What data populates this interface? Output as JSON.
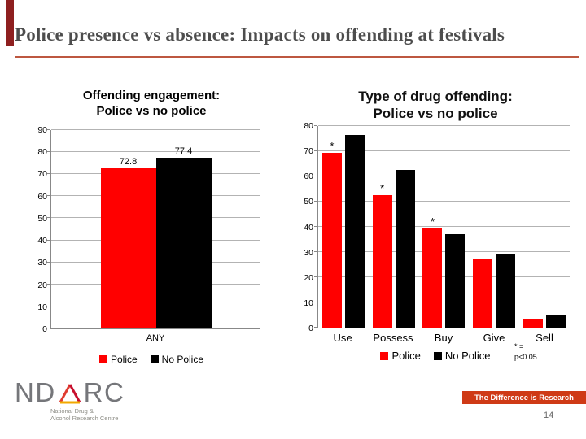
{
  "slide": {
    "title": "Police presence vs absence: Impacts on offending at festivals",
    "footer_banner": "The Difference is Research",
    "page_number": "14",
    "accent_color": "#8e1f1f",
    "underline_color": "#bd5740",
    "banner_color": "#cf3a16"
  },
  "logo": {
    "text_nd": "ND",
    "text_rc": "RC",
    "triangle_icon_colors": {
      "left": "#e03c31",
      "right": "#c8102e",
      "bottom": "#f2a900"
    },
    "subtitle_line1": "National Drug &",
    "subtitle_line2": "Alcohol Research Centre"
  },
  "chart_data": [
    {
      "type": "bar",
      "title_line1": "Offending engagement:",
      "title_line2": "Police vs no police",
      "categories": [
        "ANY"
      ],
      "series": [
        {
          "name": "Police",
          "color": "#ff0000",
          "values": [
            72.8
          ],
          "value_labels": [
            "72.8"
          ]
        },
        {
          "name": "No Police",
          "color": "#000000",
          "values": [
            77.4
          ],
          "value_labels": [
            "77.4"
          ]
        }
      ],
      "ylim": [
        0,
        90
      ],
      "yticks": [
        0,
        10,
        20,
        30,
        40,
        50,
        60,
        70,
        80,
        90
      ],
      "grid": true,
      "legend_position": "bottom"
    },
    {
      "type": "bar",
      "title_line1": "Type of drug offending:",
      "title_line2": "Police vs no police",
      "categories": [
        "Use",
        "Possess",
        "Buy",
        "Give",
        "Sell"
      ],
      "series": [
        {
          "name": "Police",
          "color": "#ff0000",
          "values": [
            69.5,
            52.5,
            39.5,
            27,
            3.5
          ],
          "asterisks": [
            true,
            true,
            true,
            false,
            false
          ]
        },
        {
          "name": "No Police",
          "color": "#000000",
          "values": [
            76.5,
            62.5,
            37,
            29,
            5
          ]
        }
      ],
      "ylim": [
        0,
        80
      ],
      "yticks": [
        0,
        10,
        20,
        30,
        40,
        50,
        60,
        70,
        80
      ],
      "grid": true,
      "legend_position": "bottom",
      "note_line1": "* =",
      "note_line2": "p<0.05"
    }
  ]
}
